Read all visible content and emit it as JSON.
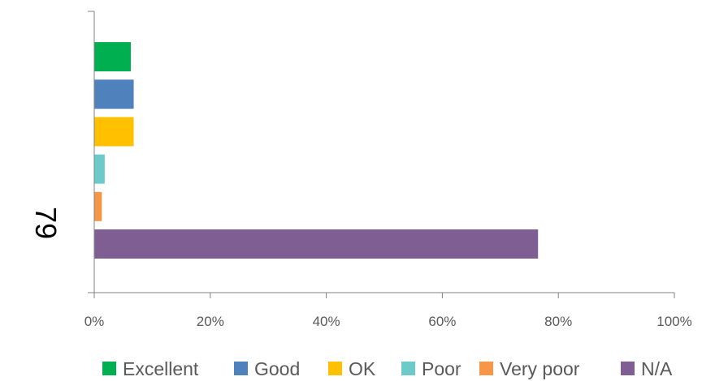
{
  "chart_data": {
    "type": "bar",
    "orientation": "horizontal",
    "category": "79",
    "series": [
      {
        "name": "Excellent",
        "value": 6.3,
        "color": "#00B050"
      },
      {
        "name": "Good",
        "value": 6.8,
        "color": "#4F81BD"
      },
      {
        "name": "OK",
        "value": 6.8,
        "color": "#FFC000"
      },
      {
        "name": "Poor",
        "value": 1.8,
        "color": "#6DCACB"
      },
      {
        "name": "Very poor",
        "value": 1.3,
        "color": "#F79646"
      },
      {
        "name": "N/A",
        "value": 76.5,
        "color": "#7F5F93"
      }
    ],
    "xlim": [
      0,
      100
    ],
    "x_ticks": [
      "0%",
      "20%",
      "40%",
      "60%",
      "80%",
      "100%"
    ],
    "grid": false,
    "legend_position": "bottom"
  }
}
